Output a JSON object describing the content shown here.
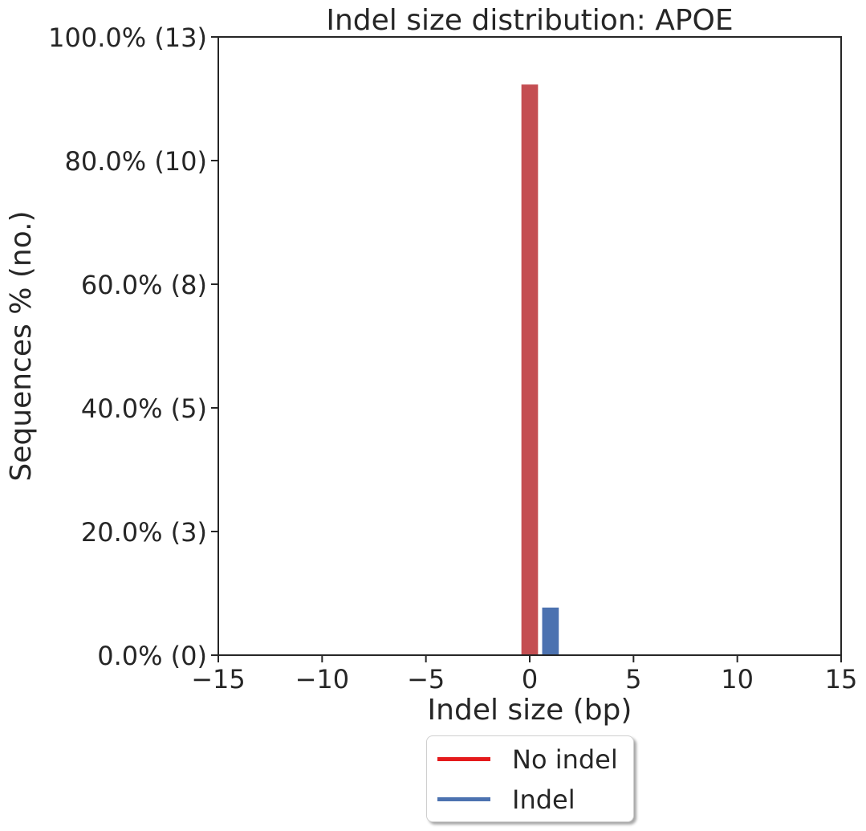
{
  "chart_data": {
    "type": "bar",
    "title": "Indel size distribution: APOE",
    "xlabel": "Indel size (bp)",
    "ylabel": "Sequences % (no.)",
    "xlim": [
      -15,
      15
    ],
    "ylim": [
      0,
      100
    ],
    "x_ticks": [
      {
        "value": -15,
        "label": "−15"
      },
      {
        "value": -10,
        "label": "−10"
      },
      {
        "value": -5,
        "label": "−5"
      },
      {
        "value": 0,
        "label": "0"
      },
      {
        "value": 5,
        "label": "5"
      },
      {
        "value": 10,
        "label": "10"
      },
      {
        "value": 15,
        "label": "15"
      }
    ],
    "y_ticks": [
      {
        "value": 0,
        "label": "0.0% (0)"
      },
      {
        "value": 20,
        "label": "20.0% (3)"
      },
      {
        "value": 40,
        "label": "40.0% (5)"
      },
      {
        "value": 60,
        "label": "60.0% (8)"
      },
      {
        "value": 80,
        "label": "80.0% (10)"
      },
      {
        "value": 100,
        "label": "100.0% (13)"
      }
    ],
    "series": [
      {
        "name": "No indel",
        "color": "#c44e52",
        "legend_color": "#e41a1c",
        "x": [
          0
        ],
        "values": [
          92.3
        ]
      },
      {
        "name": "Indel",
        "color": "#4c72b0",
        "legend_color": "#4c72b0",
        "x": [
          1
        ],
        "values": [
          7.7
        ]
      }
    ],
    "bar_width": 0.8,
    "legend_placement": "bottom-center, below plot",
    "grid": false
  }
}
